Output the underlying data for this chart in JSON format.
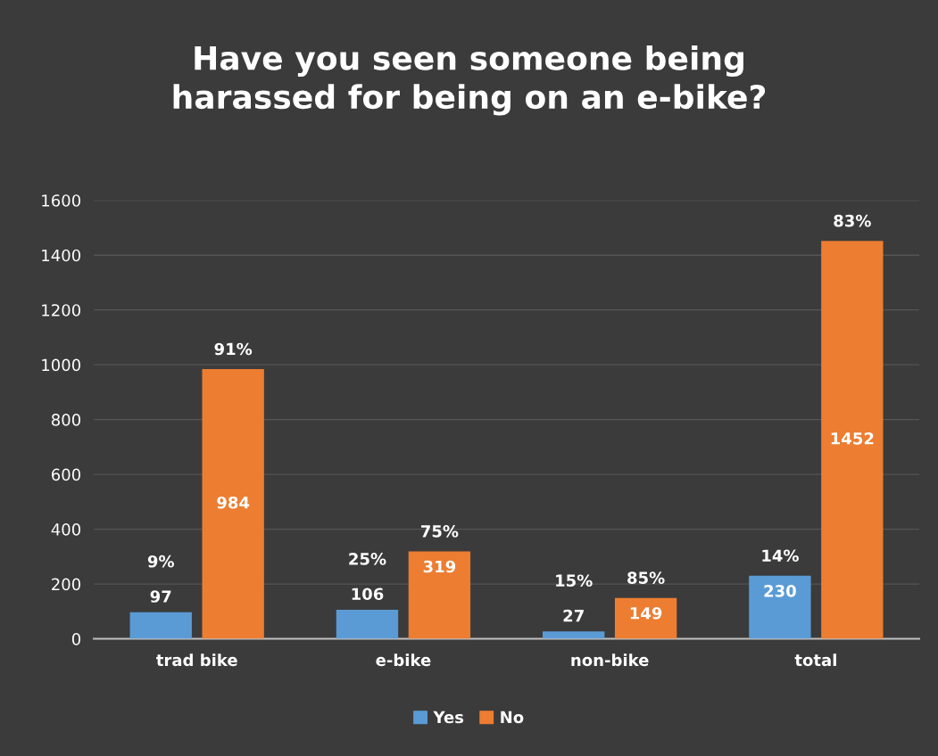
{
  "chart_data": {
    "type": "bar",
    "title": "Have you seen someone being\nharassed for being on an e-bike?",
    "categories": [
      "trad bike",
      "e-bike",
      "non-bike",
      "total"
    ],
    "series": [
      {
        "name": "Yes",
        "color": "#5b9bd5",
        "values": [
          97,
          106,
          27,
          230
        ]
      },
      {
        "name": "No",
        "color": "#ed7d31",
        "values": [
          984,
          319,
          149,
          1452
        ]
      }
    ],
    "ylim": [
      0,
      1600
    ],
    "yticks": [
      0,
      200,
      400,
      600,
      800,
      1000,
      1200,
      1400,
      1600
    ],
    "grid": "y",
    "legend": "bottom",
    "data_labels": true,
    "annotations": [
      "9%",
      "25%",
      "15%",
      "14%",
      "91%",
      "75%",
      "85%",
      "83%"
    ]
  }
}
